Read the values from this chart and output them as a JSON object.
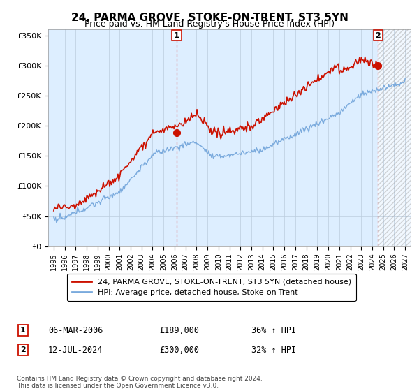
{
  "title": "24, PARMA GROVE, STOKE-ON-TRENT, ST3 5YN",
  "subtitle": "Price paid vs. HM Land Registry's House Price Index (HPI)",
  "title_fontsize": 11,
  "subtitle_fontsize": 9,
  "ylim": [
    0,
    360000
  ],
  "yticks": [
    0,
    50000,
    100000,
    150000,
    200000,
    250000,
    300000,
    350000
  ],
  "ytick_labels": [
    "£0",
    "£50K",
    "£100K",
    "£150K",
    "£200K",
    "£250K",
    "£300K",
    "£350K"
  ],
  "xlim_start": 1994.5,
  "xlim_end": 2027.5,
  "xtick_years": [
    1995,
    1996,
    1997,
    1998,
    1999,
    2000,
    2001,
    2002,
    2003,
    2004,
    2005,
    2006,
    2007,
    2008,
    2009,
    2010,
    2011,
    2012,
    2013,
    2014,
    2015,
    2016,
    2017,
    2018,
    2019,
    2020,
    2021,
    2022,
    2023,
    2024,
    2025,
    2026,
    2027
  ],
  "hpi_color": "#7aaadd",
  "price_color": "#cc1100",
  "vline_color": "#dd6666",
  "bg_fill_color": "#ddeeff",
  "marker1_x": 2006.19,
  "marker1_y": 189000,
  "marker2_x": 2024.54,
  "marker2_y": 300000,
  "annotation1": {
    "label": "1",
    "date": "06-MAR-2006",
    "price": "£189,000",
    "change": "36% ↑ HPI"
  },
  "annotation2": {
    "label": "2",
    "date": "12-JUL-2024",
    "price": "£300,000",
    "change": "32% ↑ HPI"
  },
  "legend_line1": "24, PARMA GROVE, STOKE-ON-TRENT, ST3 5YN (detached house)",
  "legend_line2": "HPI: Average price, detached house, Stoke-on-Trent",
  "footer": "Contains HM Land Registry data © Crown copyright and database right 2024.\nThis data is licensed under the Open Government Licence v3.0.",
  "bg_color": "#ffffff",
  "grid_color": "#bbccdd"
}
